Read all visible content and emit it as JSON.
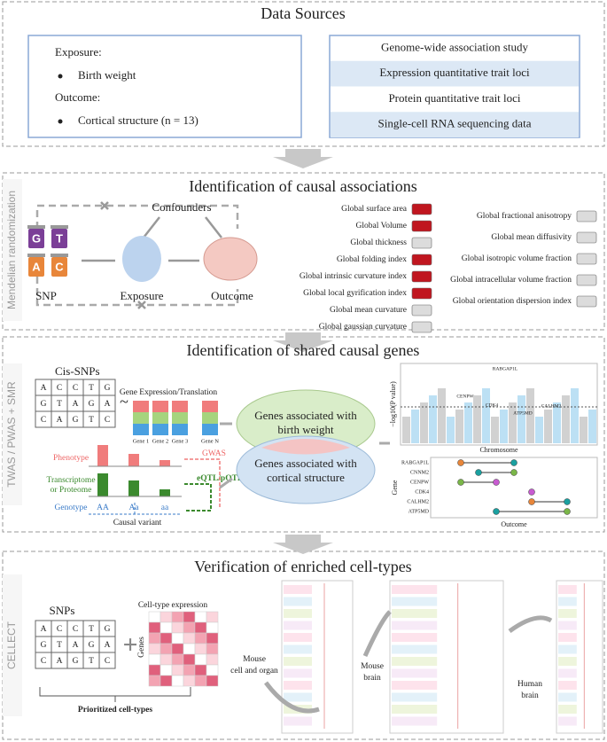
{
  "data_sources": {
    "title": "Data Sources",
    "exposure_label": "Exposure:",
    "exposure": "Birth weight",
    "outcome_label": "Outcome:",
    "outcome": "Cortical structure (n = 13)",
    "sources": [
      "Genome-wide association study",
      "Expression quantitative trait loci",
      "Protein quantitative trait loci",
      "Single-cell RNA sequencing data"
    ]
  },
  "causal": {
    "side_label": "Mendelian randomization",
    "title": "Identification of causal associations",
    "confounders": "Confounders",
    "snp": "SNP",
    "exposure": "Exposure",
    "outcome": "Outcome",
    "snp_letters": [
      "G",
      "T",
      "A",
      "C"
    ],
    "traits_left": [
      {
        "name": "Global surface area",
        "color": "#c0161f"
      },
      {
        "name": "Global Volume",
        "color": "#c0161f"
      },
      {
        "name": "Global thickness",
        "color": "#dcdcdc"
      },
      {
        "name": "Global folding index",
        "color": "#c0161f"
      },
      {
        "name": "Global intrinsic curvature index",
        "color": "#c0161f"
      },
      {
        "name": "Global local gyrification index",
        "color": "#c0161f"
      },
      {
        "name": "Global mean curvature",
        "color": "#dcdcdc"
      },
      {
        "name": "Global gaussian curvature",
        "color": "#dcdcdc"
      }
    ],
    "traits_right": [
      {
        "name": "Global fractional anisotropy",
        "color": "#dcdcdc"
      },
      {
        "name": "Global mean diffusivity",
        "color": "#dcdcdc"
      },
      {
        "name": "Global isotropic volume fraction",
        "color": "#dcdcdc"
      },
      {
        "name": "Global intracellular volume fraction",
        "color": "#dcdcdc"
      },
      {
        "name": "Global orientation dispersion index",
        "color": "#dcdcdc"
      }
    ]
  },
  "shared": {
    "side_label": "TWAS / PWAS + SMR",
    "title": "Identification of shared causal genes",
    "cis_snps": "Cis-SNPs",
    "snp_grid": [
      [
        "A",
        "C",
        "C",
        "T",
        "G"
      ],
      [
        "G",
        "T",
        "A",
        "G",
        "A"
      ],
      [
        "C",
        "A",
        "G",
        "T",
        "C"
      ]
    ],
    "tilde": "~",
    "gene_expression": "Gene Expression/Translation",
    "genes": [
      "Gene 1",
      "Gene 2",
      "Gene 3",
      "Gene N"
    ],
    "phenotype": "Phenotype",
    "transcriptome": [
      "Transcriptome",
      "or Proteome"
    ],
    "genotype": "Genotype",
    "gwas": "GWAS",
    "eqtl": "eQTL/pQTL",
    "alleles": [
      "AA",
      "Aa",
      "aa"
    ],
    "causal_variant": "Causal variant",
    "venn": [
      [
        "Genes associated with",
        "birth weight"
      ],
      [
        "Genes associated with",
        "cortical structure"
      ]
    ],
    "manhattan": {
      "ylabel": "−log10(P value)",
      "xlabel": "Chromosome",
      "labels": [
        "RABGAP1L",
        "CENPW",
        "CDK4",
        "CALHM2",
        "ATP5MD"
      ]
    },
    "dotplot": {
      "ylabel": "Gene",
      "xlabel": "Outcome",
      "genes": [
        "RABGAP1L",
        "CNNM2",
        "CENPW",
        "CDK4",
        "CALHM2",
        "ATP5MD"
      ]
    }
  },
  "cellect": {
    "side_label": "CELLECT",
    "title": "Verification of enriched cell-types",
    "snps": "SNPs",
    "snp_grid": [
      [
        "A",
        "C",
        "C",
        "T",
        "G"
      ],
      [
        "G",
        "T",
        "A",
        "G",
        "A"
      ],
      [
        "C",
        "A",
        "G",
        "T",
        "C"
      ]
    ],
    "plus": "+",
    "cell_expression": "Cell-type expression",
    "genes_label": "Genes",
    "prioritized": "Prioritized cell-types",
    "mouse_organ": [
      "Mouse",
      "cell and organ"
    ],
    "mouse_brain": [
      "Mouse",
      "brain"
    ],
    "human_brain": [
      "Human",
      "brain"
    ]
  }
}
